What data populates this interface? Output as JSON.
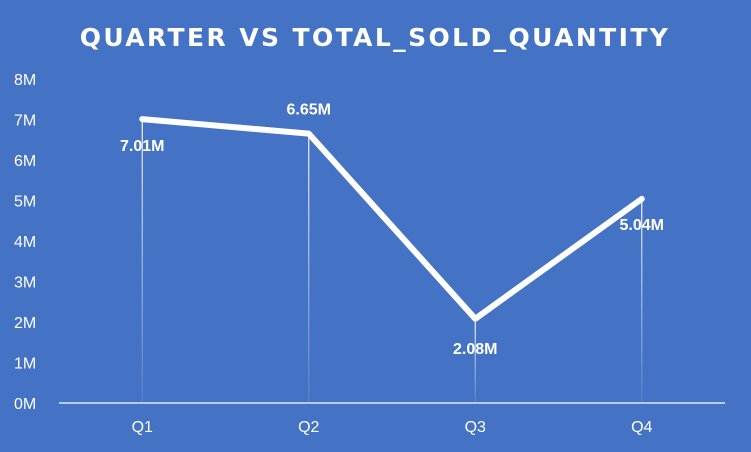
{
  "chart_data": {
    "type": "line",
    "title": "QUARTER VS TOTAL_SOLD_QUANTITY",
    "xlabel": "",
    "ylabel": "",
    "categories": [
      "Q1",
      "Q2",
      "Q3",
      "Q4"
    ],
    "series": [
      {
        "values": [
          7010000,
          6650000,
          2080000,
          5040000
        ],
        "data_labels": [
          "7.01M",
          "6.65M",
          "2.08M",
          "5.04M"
        ]
      }
    ],
    "ylim": [
      0,
      8000000
    ],
    "y_ticks": [
      "0M",
      "1M",
      "2M",
      "3M",
      "4M",
      "5M",
      "6M",
      "7M",
      "8M"
    ],
    "grid": false,
    "drop_lines": true,
    "legend": "none",
    "colors": {
      "background": "#4472c4",
      "line": "#ffffff",
      "text": "#ffffff"
    }
  }
}
